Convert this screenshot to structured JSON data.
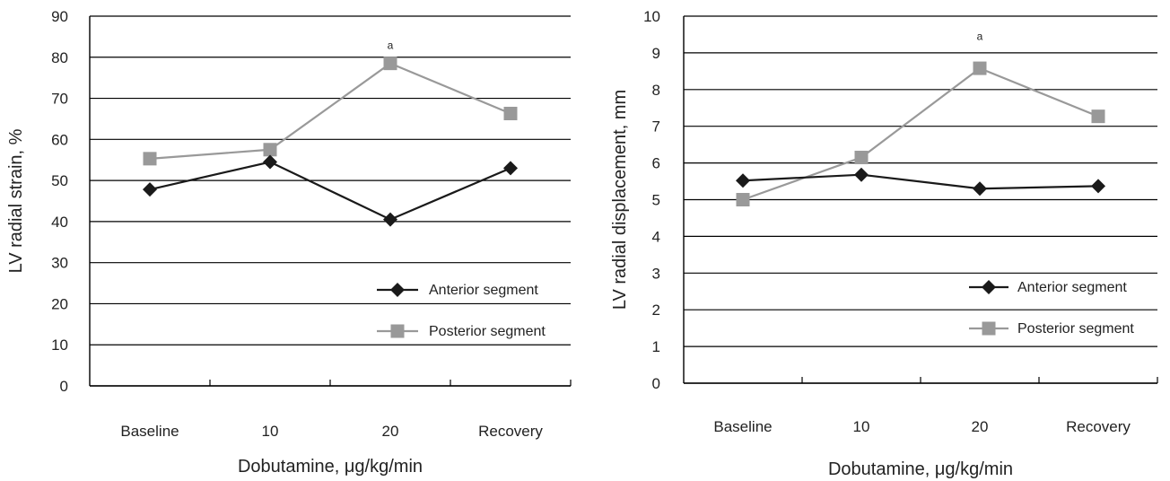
{
  "chart_data": [
    {
      "type": "line",
      "title": "",
      "xlabel": "Dobutamine, μg/kg/min",
      "ylabel": "LV radial strain, %",
      "categories": [
        "Baseline",
        "10",
        "20",
        "Recovery"
      ],
      "ylim": [
        0,
        90
      ],
      "yticks": [
        "0",
        "10",
        "20",
        "30",
        "40",
        "50",
        "60",
        "70",
        "80",
        "90"
      ],
      "grid": "horizontal",
      "legend_position": "bottom-right",
      "series": [
        {
          "name": "Anterior segment",
          "values": [
            47.8,
            54.5,
            40.5,
            53.0
          ],
          "color": "#1a1a1a",
          "marker": "diamond"
        },
        {
          "name": "Posterior segment",
          "values": [
            55.3,
            57.5,
            78.5,
            66.3
          ],
          "color": "#999999",
          "marker": "square"
        }
      ],
      "annotations": [
        {
          "text": "a",
          "category": "20",
          "value": 82
        }
      ]
    },
    {
      "type": "line",
      "title": "",
      "xlabel": "Dobutamine, μg/kg/min",
      "ylabel": "LV radial displacement, mm",
      "categories": [
        "Baseline",
        "10",
        "20",
        "Recovery"
      ],
      "ylim": [
        0,
        10
      ],
      "yticks": [
        "0",
        "1",
        "2",
        "3",
        "4",
        "5",
        "6",
        "7",
        "8",
        "9",
        "10"
      ],
      "grid": "horizontal",
      "legend_position": "bottom-right",
      "series": [
        {
          "name": "Anterior segment",
          "values": [
            5.52,
            5.68,
            5.3,
            5.37
          ],
          "color": "#1a1a1a",
          "marker": "diamond"
        },
        {
          "name": "Posterior segment",
          "values": [
            5.0,
            6.15,
            8.58,
            7.27
          ],
          "color": "#999999",
          "marker": "square"
        }
      ],
      "annotations": [
        {
          "text": "a",
          "category": "20",
          "value": 9.35
        }
      ]
    }
  ]
}
